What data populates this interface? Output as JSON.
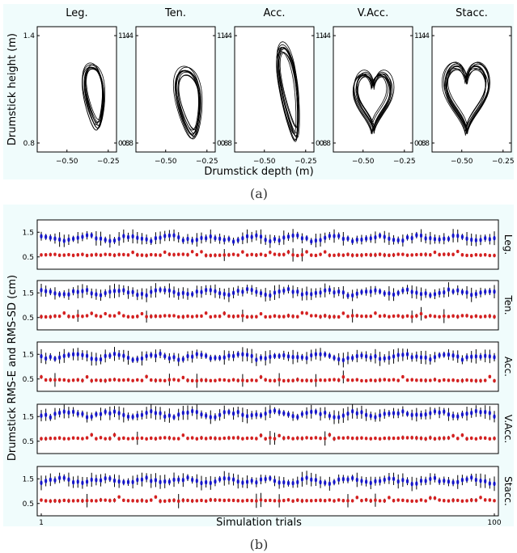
{
  "chart_data": [
    {
      "type": "line",
      "panel": "a",
      "caption": "(a)",
      "xlabel": "Drumstick depth (m)",
      "ylabel": "Drumstick height (m)",
      "xlim": [
        -0.68,
        -0.2
      ],
      "ylim": [
        0.75,
        1.45
      ],
      "xticks": [
        -0.5,
        -0.25
      ],
      "xtick_labels": [
        "−0.50",
        "−0.25"
      ],
      "yticks": [
        0.8,
        1.4
      ],
      "ytick_labels": [
        "0.8",
        "1.4"
      ],
      "subplots": [
        {
          "title": "Leg.",
          "x_range": [
            -0.44,
            -0.27
          ],
          "y_range": [
            0.84,
            1.24
          ]
        },
        {
          "title": "Ten.",
          "x_range": [
            -0.48,
            -0.26
          ],
          "y_range": [
            0.82,
            1.25
          ]
        },
        {
          "title": "Acc.",
          "x_range": [
            -0.44,
            -0.27
          ],
          "y_range": [
            0.81,
            1.38
          ]
        },
        {
          "title": "V.Acc.",
          "x_range": [
            -0.61,
            -0.27
          ],
          "y_range": [
            0.84,
            1.25
          ]
        },
        {
          "title": "Stacc.",
          "x_range": [
            -0.67,
            -0.27
          ],
          "y_range": [
            0.83,
            1.34
          ]
        }
      ]
    },
    {
      "type": "scatter",
      "panel": "b",
      "caption": "(b)",
      "xlabel": "Simulation trials",
      "ylabel": "Drumstick RMS-E and RMS-SD (cm)",
      "xlim": [
        1,
        100
      ],
      "xticks": [
        1,
        100
      ],
      "ylim": [
        0,
        2
      ],
      "yticks": [
        0.5,
        1.5
      ],
      "ytick_labels": [
        "0.5",
        "1.5"
      ],
      "series_colors": {
        "rms_e": "#1515c8",
        "rms_sd": "#d42020"
      },
      "rows": [
        {
          "label": "Leg.",
          "blue_mean": 1.25,
          "red_mean": 0.58
        },
        {
          "label": "Ten.",
          "blue_mean": 1.52,
          "red_mean": 0.55
        },
        {
          "label": "Acc.",
          "blue_mean": 1.4,
          "red_mean": 0.45
        },
        {
          "label": "V.Acc.",
          "blue_mean": 1.6,
          "red_mean": 0.62
        },
        {
          "label": "Stacc.",
          "blue_mean": 1.42,
          "red_mean": 0.62
        }
      ]
    }
  ]
}
